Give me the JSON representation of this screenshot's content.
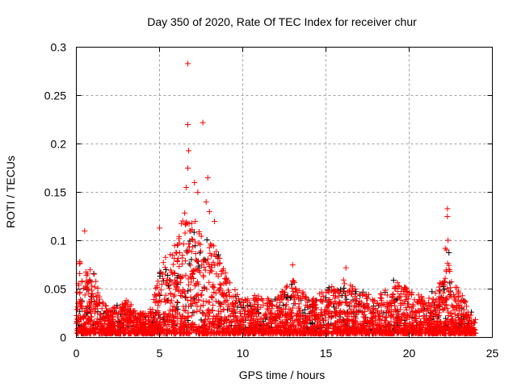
{
  "chart_data": {
    "type": "scatter",
    "title": "Day 350 of 2020, Rate Of TEC Index for receiver chur",
    "xlabel": "GPS time / hours",
    "ylabel": "ROTI / TECUs",
    "xlim": [
      0,
      25
    ],
    "ylim": [
      0,
      0.3
    ],
    "xticks": [
      "0",
      "5",
      "10",
      "15",
      "20",
      "25"
    ],
    "yticks": [
      "0",
      "0.05",
      "0.1",
      "0.15",
      "0.2",
      "0.25",
      "0.3"
    ],
    "grid": true,
    "colors": {
      "main": "#ff0000",
      "secondary": "#000000",
      "grid": "#a0a0a0"
    },
    "marker": "plus",
    "data_range_hours": [
      0,
      24
    ],
    "dense_envelope": {
      "hours": [
        0,
        0.3,
        0.5,
        1,
        1.5,
        2,
        3,
        3.5,
        4,
        4.5,
        5,
        5.5,
        6,
        6.5,
        7,
        7.5,
        8,
        8.5,
        9,
        9.5,
        10,
        11,
        12,
        13,
        13.5,
        14,
        15,
        16,
        17,
        18,
        19,
        20,
        21,
        22,
        22.3,
        22.6,
        23,
        24
      ],
      "max_roti": [
        0.06,
        0.1,
        0.07,
        0.07,
        0.04,
        0.03,
        0.04,
        0.03,
        0.025,
        0.03,
        0.07,
        0.09,
        0.1,
        0.13,
        0.12,
        0.12,
        0.1,
        0.09,
        0.07,
        0.05,
        0.04,
        0.045,
        0.04,
        0.06,
        0.05,
        0.04,
        0.05,
        0.06,
        0.05,
        0.04,
        0.06,
        0.05,
        0.04,
        0.06,
        0.12,
        0.06,
        0.05,
        0.02
      ]
    },
    "peaks": {
      "x": [
        6.7,
        7.6,
        6.7,
        6.75,
        6.7,
        7.1,
        7.9,
        22.3,
        22.3,
        7.8,
        8.0,
        0.5,
        5.0,
        13.0,
        16.2,
        6.6,
        7.3,
        8.3
      ],
      "y": [
        0.283,
        0.222,
        0.22,
        0.193,
        0.175,
        0.16,
        0.165,
        0.133,
        0.125,
        0.14,
        0.13,
        0.11,
        0.113,
        0.075,
        0.072,
        0.155,
        0.15,
        0.12
      ]
    }
  }
}
